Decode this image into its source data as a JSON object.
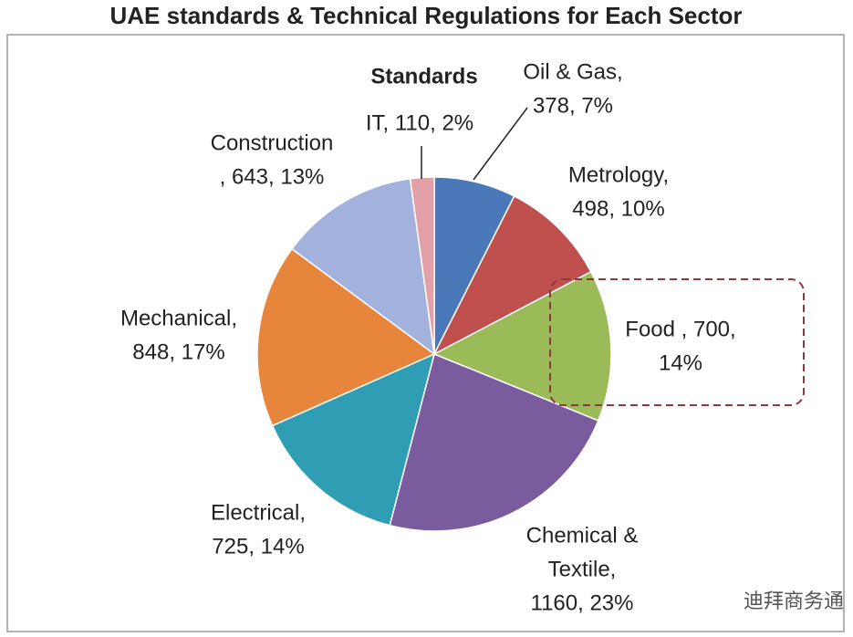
{
  "chart_data": {
    "type": "pie",
    "title": "UAE standards & Technical Regulations for Each Sector",
    "subtitle": "Standards",
    "categories": [
      "Oil & Gas",
      "Metrology",
      "Food",
      "Chemical & Textile",
      "Electrical",
      "Mechanical",
      "Construction",
      "IT"
    ],
    "values": [
      378,
      498,
      700,
      1160,
      725,
      848,
      643,
      110
    ],
    "labels": [
      [
        "Oil & Gas,",
        "378, 7%"
      ],
      [
        "Metrology,",
        "498, 10%"
      ],
      [
        "Food , 700,",
        "14%"
      ],
      [
        "Chemical &",
        "Textile,",
        "1160, 23%"
      ],
      [
        "Electrical,",
        "725, 14%"
      ],
      [
        "Mechanical,",
        "848, 17%"
      ],
      [
        "Construction",
        ", 643, 13%"
      ],
      [
        "IT, 110, 2%"
      ]
    ],
    "colors": [
      "#4a78b8",
      "#c0504d",
      "#9bbb59",
      "#7a5b9e",
      "#2f9db3",
      "#e8853c",
      "#a3b2dc",
      "#e3a1a7"
    ],
    "watermark": "迪拜商务通"
  }
}
